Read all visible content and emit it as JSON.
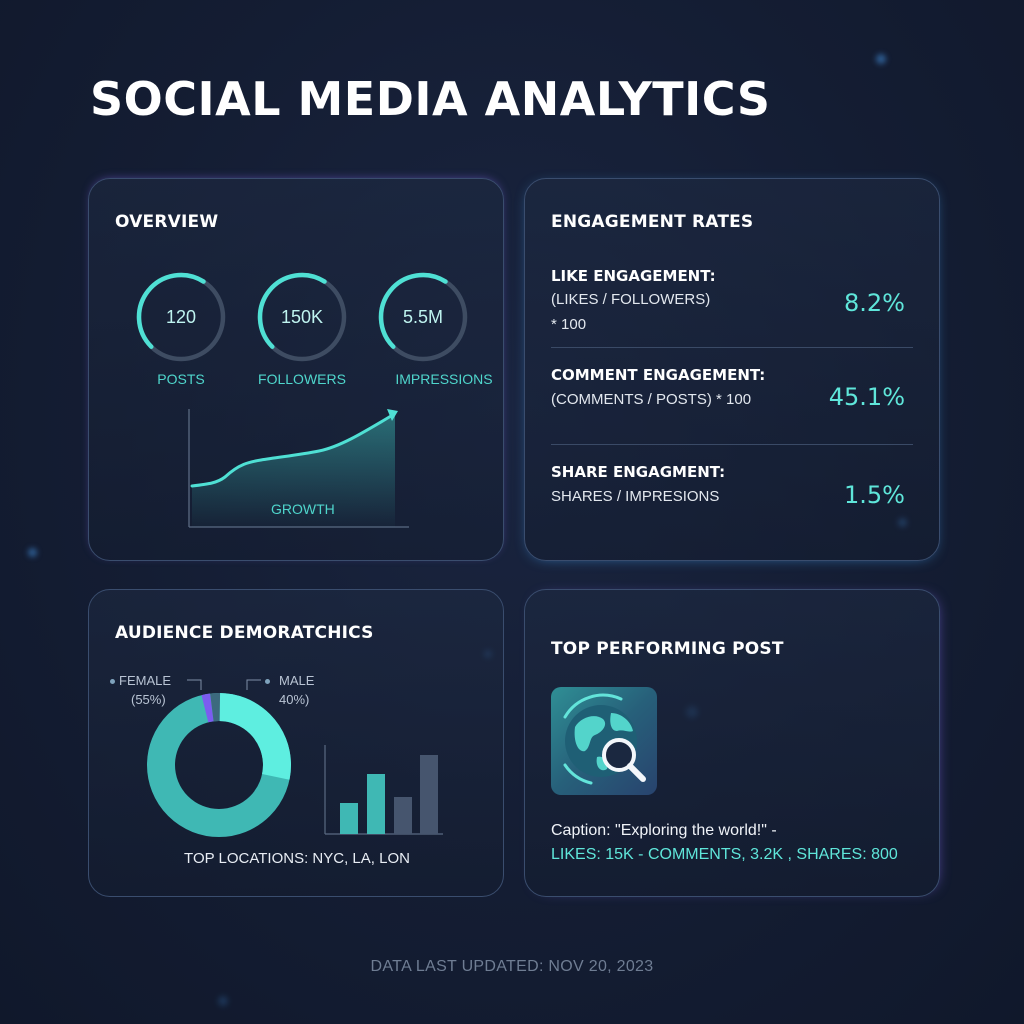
{
  "title": "SOCIAL MEDIA ANALYTICS",
  "overview": {
    "title": "OVERVIEW",
    "metrics": [
      {
        "value": "120",
        "label": "POSTS",
        "progress": 0.62
      },
      {
        "value": "150K",
        "label": "FOLLOWERS",
        "progress": 0.62
      },
      {
        "value": "5.5M",
        "label": "IMPRESSIONS",
        "progress": 0.62
      }
    ],
    "growth_label": "GROWTH"
  },
  "engagement": {
    "title": "ENGAGEMENT RATES",
    "rows": [
      {
        "label": "LIKE ENGAGEMENT:",
        "formula_1": "(LIKES / FOLLOWERS)",
        "formula_2": "* 100",
        "value": "8.2%"
      },
      {
        "label": "COMMENT ENGAGEMENT:",
        "formula_1": "(COMMENTS / POSTS) * 100",
        "value": "45.1%"
      },
      {
        "label": "SHARE ENGAGMENT:",
        "formula_1": "SHARES / IMPRESIONS",
        "value": "1.5%"
      }
    ]
  },
  "audience": {
    "title": "AUDIENCE DEMORATCHICS",
    "female_label": "FEMALE",
    "female_pct": "(55%)",
    "male_label": "MALE",
    "male_pct": "40%)",
    "locations": "TOP LOCATIONS: NYC, LA, LON"
  },
  "top_post": {
    "title": "TOP PERFORMING POST",
    "caption": "Caption: \"Exploring the world!\" -",
    "stats": "LIKES: 15K - COMMENTS, 3.2K , SHARES: 800",
    "thumbnail_icon": "globe-search-icon"
  },
  "footer": "DATA LAST UPDATED: NOV 20, 2023",
  "colors": {
    "accent": "#4fd6cc",
    "background": "#141d33",
    "card_border": "#3a4d6e"
  }
}
